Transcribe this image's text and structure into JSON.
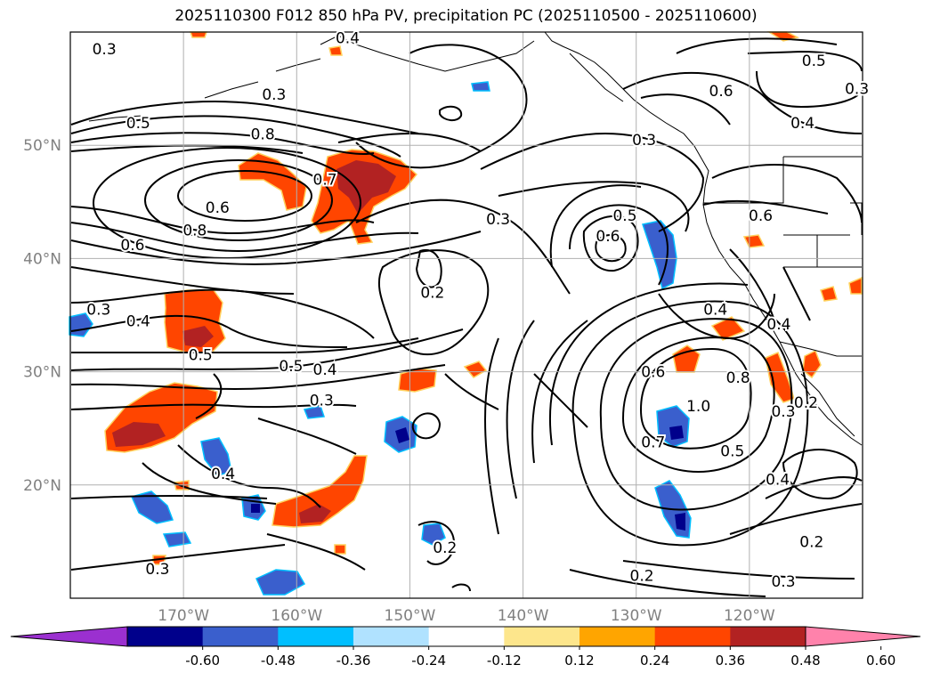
{
  "title": "2025110300 F012 850 hPa PV, precipitation PC (2025110500 - 2025110600)",
  "map": {
    "lat_labels": [
      "50°N",
      "40°N",
      "30°N",
      "20°N"
    ],
    "lon_labels": [
      "170°W",
      "160°W",
      "150°W",
      "140°W",
      "130°W",
      "120°W"
    ],
    "lat_range": [
      10,
      60
    ],
    "lon_range": [
      -180,
      -110
    ],
    "label_color": "#808080"
  },
  "contour_labels": [
    {
      "text": "0.3",
      "lon": -177,
      "lat": 58.5
    },
    {
      "text": "0.4",
      "lon": -155.5,
      "lat": 59.5
    },
    {
      "text": "0.3",
      "lon": -162,
      "lat": 54.5
    },
    {
      "text": "0.5",
      "lon": -174,
      "lat": 52
    },
    {
      "text": "0.8",
      "lon": -163,
      "lat": 51
    },
    {
      "text": "0.7",
      "lon": -157.5,
      "lat": 47
    },
    {
      "text": "0.6",
      "lon": -167,
      "lat": 44.5
    },
    {
      "text": "0.8",
      "lon": -169,
      "lat": 42.5
    },
    {
      "text": "0.6",
      "lon": -174.5,
      "lat": 41.2
    },
    {
      "text": "0.3",
      "lon": -142.2,
      "lat": 43.5
    },
    {
      "text": "0.2",
      "lon": -148,
      "lat": 37
    },
    {
      "text": "0.3",
      "lon": -177.5,
      "lat": 35.5
    },
    {
      "text": "0.4",
      "lon": -174,
      "lat": 34.5
    },
    {
      "text": "0.5",
      "lon": -168.5,
      "lat": 31.5
    },
    {
      "text": "0.5",
      "lon": -160.5,
      "lat": 30.5
    },
    {
      "text": "0.4",
      "lon": -157.5,
      "lat": 30.2
    },
    {
      "text": "0.3",
      "lon": -157.8,
      "lat": 27.5
    },
    {
      "text": "0.4",
      "lon": -166.5,
      "lat": 21
    },
    {
      "text": "0.3",
      "lon": -129.3,
      "lat": 50.5
    },
    {
      "text": "0.6",
      "lon": -122.5,
      "lat": 54.8
    },
    {
      "text": "0.5",
      "lon": -114.3,
      "lat": 57.5
    },
    {
      "text": "0.3",
      "lon": -110.5,
      "lat": 55
    },
    {
      "text": "0.4",
      "lon": -115.3,
      "lat": 52
    },
    {
      "text": "0.5",
      "lon": -131,
      "lat": 43.8
    },
    {
      "text": "0.6",
      "lon": -132.5,
      "lat": 42
    },
    {
      "text": "0.6",
      "lon": -119,
      "lat": 43.8
    },
    {
      "text": "0.4",
      "lon": -123,
      "lat": 35.5
    },
    {
      "text": "0.4",
      "lon": -117.4,
      "lat": 34.2
    },
    {
      "text": "0.6",
      "lon": -128.5,
      "lat": 30
    },
    {
      "text": "0.8",
      "lon": -121,
      "lat": 29.5
    },
    {
      "text": "1.0",
      "lon": -124.5,
      "lat": 27
    },
    {
      "text": "0.7",
      "lon": -128.5,
      "lat": 23.8
    },
    {
      "text": "0.5",
      "lon": -121.5,
      "lat": 23
    },
    {
      "text": "0.3",
      "lon": -117,
      "lat": 26.5
    },
    {
      "text": "0.2",
      "lon": -115,
      "lat": 27.3
    },
    {
      "text": "0.4",
      "lon": -117.5,
      "lat": 20.5
    },
    {
      "text": "0.2",
      "lon": -114.5,
      "lat": 15
    },
    {
      "text": "0.2",
      "lon": -146.9,
      "lat": 14.5
    },
    {
      "text": "0.2",
      "lon": -129.5,
      "lat": 12
    },
    {
      "text": "0.3",
      "lon": -117,
      "lat": 11.5
    },
    {
      "text": "0.3",
      "lon": -172.3,
      "lat": 12.6
    }
  ],
  "colorbar": {
    "ticks": [
      "-0.60",
      "-0.48",
      "-0.36",
      "-0.24",
      "-0.12",
      "0.12",
      "0.24",
      "0.36",
      "0.48",
      "0.60"
    ],
    "colors": [
      "#9b30d0",
      "#00008b",
      "#3a5fcd",
      "#00bfff",
      "#b0e2ff",
      "#ffffff",
      "#fde68c",
      "#ffa500",
      "#ff4500",
      "#b22222",
      "#ff82ab"
    ]
  }
}
